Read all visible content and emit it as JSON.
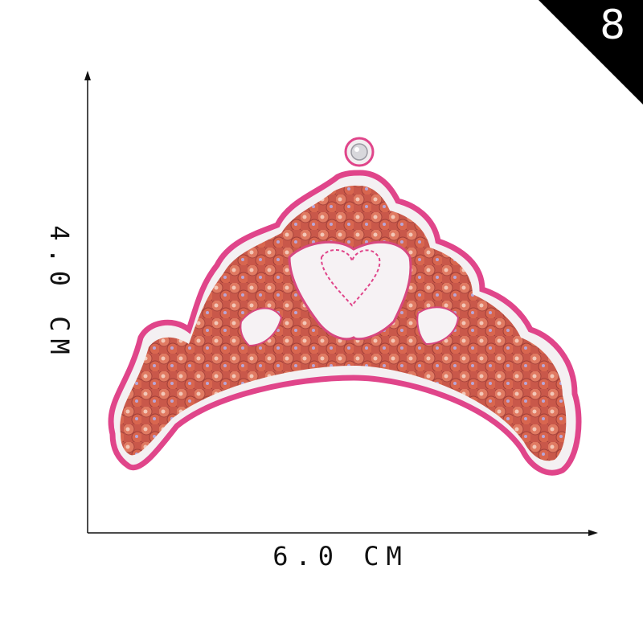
{
  "badge": {
    "number": "8"
  },
  "dimensions": {
    "height_label": "4.0 CM",
    "width_label": "6.0 CM"
  },
  "product": {
    "icon": "sequin-crown-patch-icon",
    "outline_color": "#e0458a",
    "sequin_color": "#d9674f",
    "fabric_color": "#f6f2f4"
  }
}
